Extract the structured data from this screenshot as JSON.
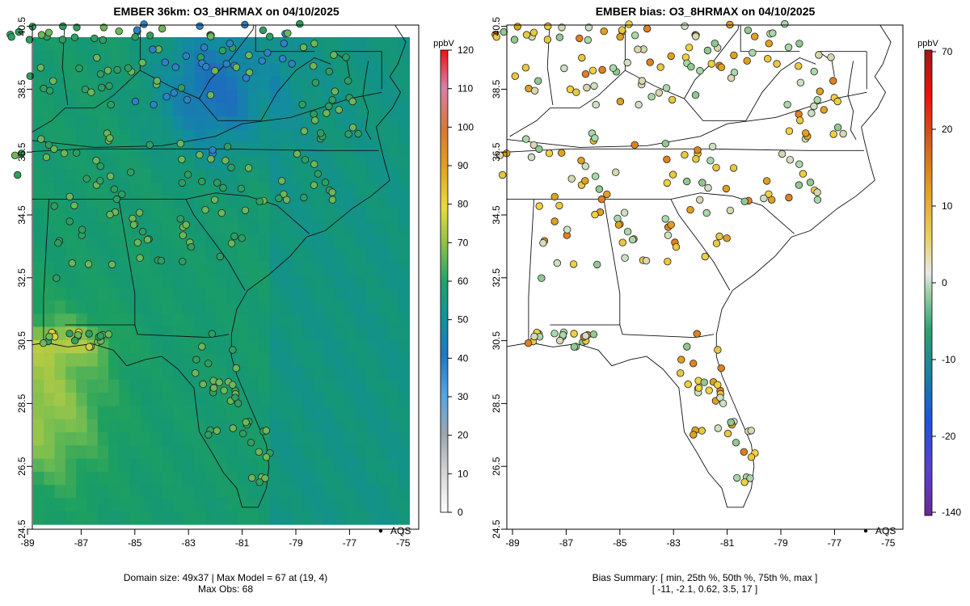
{
  "left": {
    "title": "EMBER 36km: O3_8HRMAX on 04/10/2025",
    "legend_unit": "ppbV",
    "legend_ticks": [
      "0",
      "10",
      "20",
      "30",
      "40",
      "50",
      "60",
      "70",
      "80",
      "90",
      "100",
      "110",
      "120"
    ],
    "caption_line1": "Domain size: 49x37 | Max Model = 67 at (19, 4)",
    "caption_line2": "Max Obs: 68",
    "aqs_label": "AQS"
  },
  "right": {
    "title": "EMBER bias: O3_8HRMAX on 04/10/2025",
    "legend_unit": "ppbV",
    "legend_ticks": [
      "70",
      "20",
      "10",
      "0",
      "-10",
      "-20",
      "-140"
    ],
    "caption_line1": "Bias Summary: [ min, 25th %, 50th %, 75th %, max ]",
    "caption_line2": "[ -11,   -2.1,   0.62,   3.5,   17 ]",
    "aqs_label": "AQS"
  },
  "axes": {
    "x_ticks": [
      "-89",
      "-87",
      "-85",
      "-83",
      "-81",
      "-79",
      "-77",
      "-75"
    ],
    "y_ticks": [
      "24.5",
      "26.5",
      "28.5",
      "30.5",
      "32.5",
      "34.5",
      "36.5",
      "38.5",
      "40.5"
    ],
    "lon_range": [
      -89.2,
      -74.8
    ],
    "lat_range": [
      24.5,
      40.8
    ]
  },
  "colors": {
    "model_low": "#1a73b8",
    "model_mid": "#1f9c62",
    "model_high": "#e3d84a",
    "bias_pos": "#e08a1a",
    "bias_neg": "#3aa06a",
    "bias_zero": "#dcdcdc"
  }
}
